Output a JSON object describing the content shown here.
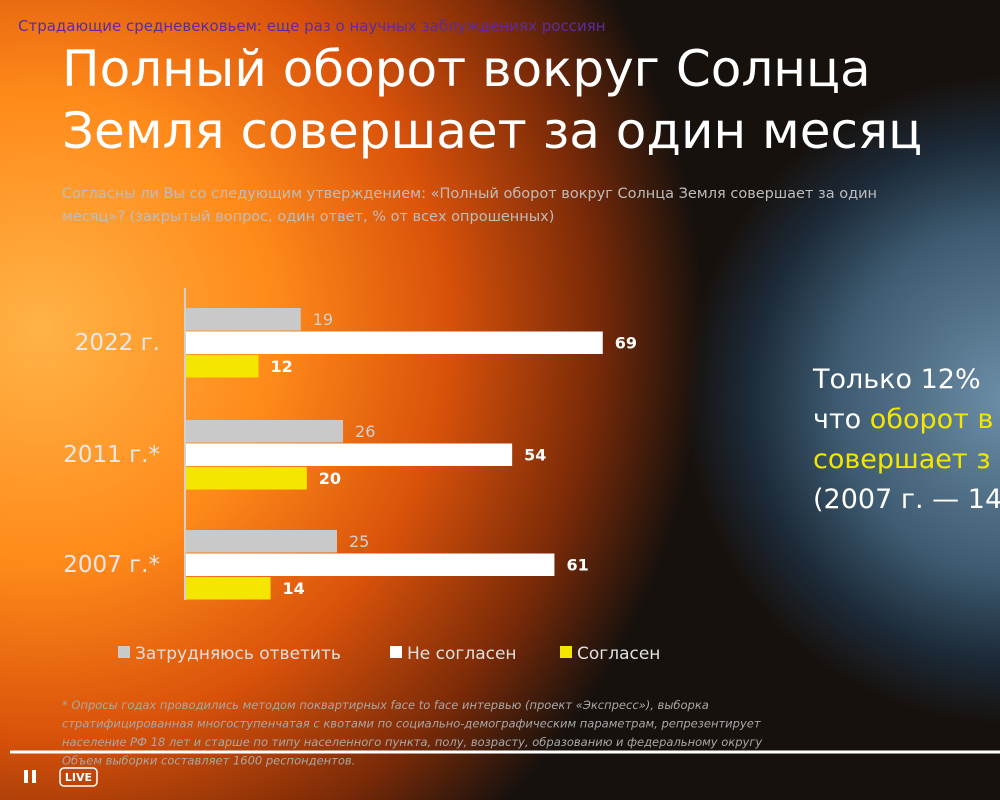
{
  "header": {
    "video_title": "Страдающие средневековьем: еще раз о научных заблуждениях россиян"
  },
  "slide": {
    "title_lines": [
      "Полный оборот вокруг Солнца",
      "Земля совершает за один месяц"
    ],
    "subtitle_lines": [
      "Согласны ли Вы со следующим утверждением: «Полный оборот вокруг Солнца Земля совершает за один",
      "месяц»? (закрытый вопрос, один ответ, % от всех опрошенных)"
    ],
    "side_text": [
      [
        {
          "text": "Только 12%",
          "color": "#ffffff"
        }
      ],
      [
        {
          "text": "что ",
          "color": "#ffffff"
        },
        {
          "text": "оборот в",
          "color": "#f5e600"
        }
      ],
      [
        {
          "text": "совершает з",
          "color": "#f5e600"
        }
      ],
      [
        {
          "text": "(2007 г. — 14",
          "color": "#ffffff"
        }
      ]
    ],
    "footnote_lines": [
      "* Опросы годах проводились методом поквартирных face to face интервью (проект «Экспресс»), выборка",
      "стратифицированная многоступенчатая с квотами по социально-демографическим параметрам, репрезентирует",
      "население РФ 18 лет и старше по типу населенного пункта, полу, возрасту, образованию и федеральному округу",
      "Объем выборки составляет 1600 респондентов."
    ]
  },
  "chart_data": {
    "type": "hbar",
    "categories": [
      "2022 г.",
      "2011 г.*",
      "2007 г.*"
    ],
    "series": [
      {
        "name": "Затрудняюсь ответить",
        "color": "#c9c9c9",
        "values": [
          19,
          26,
          25
        ]
      },
      {
        "name": "Не согласен",
        "color": "#ffffff",
        "values": [
          69,
          54,
          61
        ]
      },
      {
        "name": "Согласен",
        "color": "#f5e600",
        "values": [
          12,
          20,
          14
        ]
      }
    ]
  },
  "player": {
    "live_label": "LIVE"
  }
}
